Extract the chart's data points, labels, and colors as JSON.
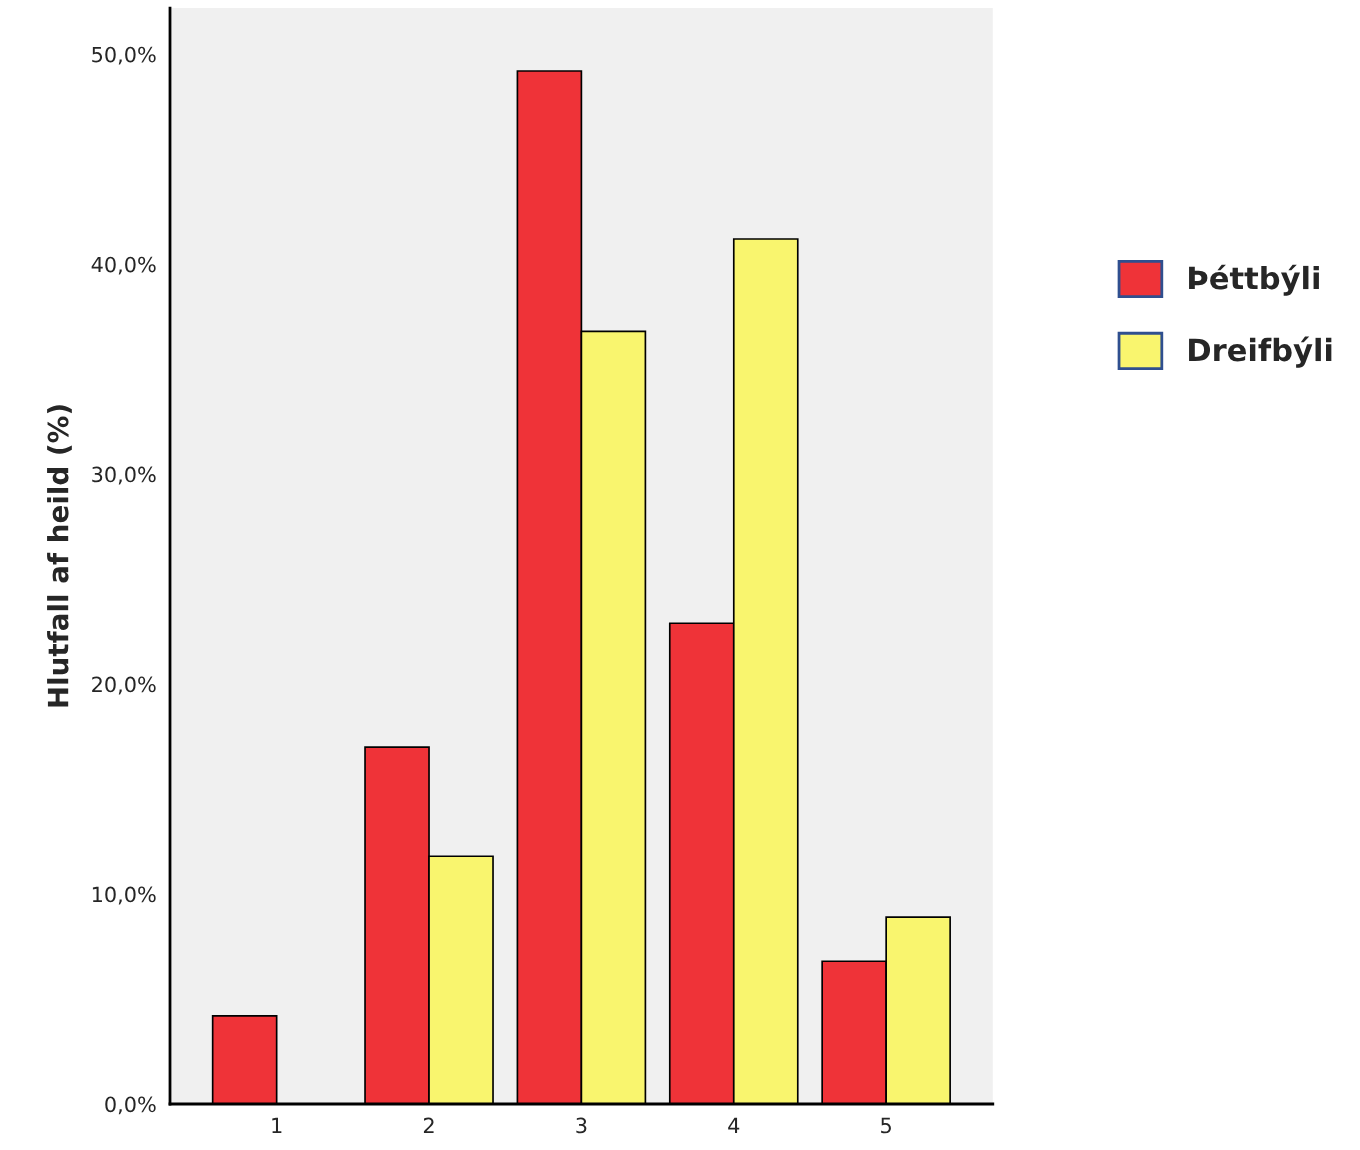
{
  "chart_data": {
    "type": "bar",
    "ylabel": "Hlutfall af heild (%)",
    "categories": [
      "1",
      "2",
      "3",
      "4",
      "5"
    ],
    "series": [
      {
        "name": "Þéttbýli",
        "color": "#ef3338",
        "values": [
          4.2,
          17.0,
          49.2,
          22.9,
          6.8
        ]
      },
      {
        "name": "Dreifbýli",
        "color": "#f9f56e",
        "values": [
          0,
          11.8,
          36.8,
          41.2,
          8.9
        ]
      }
    ],
    "ylim": [
      0,
      52.2
    ],
    "yticks": [
      {
        "value": 0,
        "label": "0,0%"
      },
      {
        "value": 10,
        "label": "10,0%"
      },
      {
        "value": 20,
        "label": "20,0%"
      },
      {
        "value": 30,
        "label": "30,0%"
      },
      {
        "value": 40,
        "label": "40,0%"
      },
      {
        "value": 50,
        "label": "50,0%"
      }
    ],
    "grid": false,
    "legend": "right"
  }
}
